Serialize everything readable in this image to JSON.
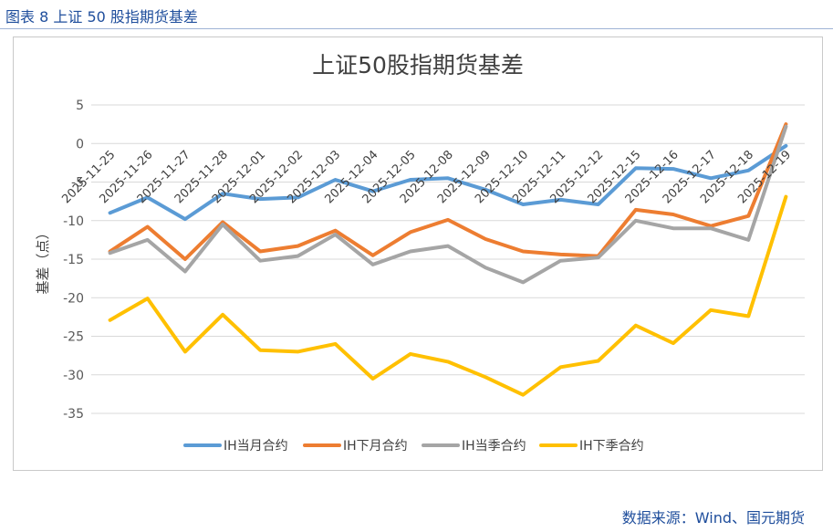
{
  "figure_title": "图表 8  上证 50 股指期货基差",
  "source_note": "数据来源：Wind、国元期货",
  "chart_data": {
    "type": "line",
    "title": "上证50股指期货基差",
    "xlabel": "",
    "ylabel": "基差（点）",
    "ylim": [
      -35,
      5
    ],
    "yticks": [
      5,
      0,
      -5,
      -10,
      -15,
      -20,
      -25,
      -30,
      -35
    ],
    "grid": true,
    "legend_position": "bottom",
    "categories": [
      "2025-11-25",
      "2025-11-26",
      "2025-11-27",
      "2025-11-28",
      "2025-12-01",
      "2025-12-02",
      "2025-12-03",
      "2025-12-04",
      "2025-12-05",
      "2025-12-08",
      "2025-12-09",
      "2025-12-10",
      "2025-12-11",
      "2025-12-12",
      "2025-12-15",
      "2025-12-16",
      "2025-12-17",
      "2025-12-18",
      "2025-12-19"
    ],
    "series": [
      {
        "name": "IH当月合约",
        "color": "#5b9bd5",
        "values": [
          -9.0,
          -7.0,
          -9.8,
          -6.5,
          -7.2,
          -7.0,
          -4.7,
          -6.2,
          -4.7,
          -4.5,
          -6.0,
          -7.9,
          -7.3,
          -7.9,
          -3.2,
          -3.3,
          -4.5,
          -3.5,
          -0.3
        ]
      },
      {
        "name": "IH下月合约",
        "color": "#ed7d31",
        "values": [
          -14.0,
          -10.8,
          -15.0,
          -10.2,
          -14.0,
          -13.3,
          -11.3,
          -14.5,
          -11.5,
          -9.9,
          -12.4,
          -14.0,
          -14.4,
          -14.6,
          -8.6,
          -9.2,
          -10.7,
          -9.4,
          2.5
        ]
      },
      {
        "name": "IH当季合约",
        "color": "#a5a5a5",
        "values": [
          -14.2,
          -12.5,
          -16.6,
          -10.5,
          -15.2,
          -14.6,
          -11.8,
          -15.7,
          -14.0,
          -13.3,
          -16.1,
          -18.0,
          -15.2,
          -14.8,
          -10.0,
          -11.0,
          -11.0,
          -12.5,
          2.2
        ]
      },
      {
        "name": "IH下季合约",
        "color": "#ffc000",
        "values": [
          -22.9,
          -20.1,
          -27.0,
          -22.2,
          -26.8,
          -27.0,
          -26.0,
          -30.5,
          -27.3,
          -28.3,
          -30.3,
          -32.6,
          -29.0,
          -28.2,
          -23.6,
          -25.9,
          -21.6,
          -22.4,
          -6.9
        ]
      }
    ]
  }
}
